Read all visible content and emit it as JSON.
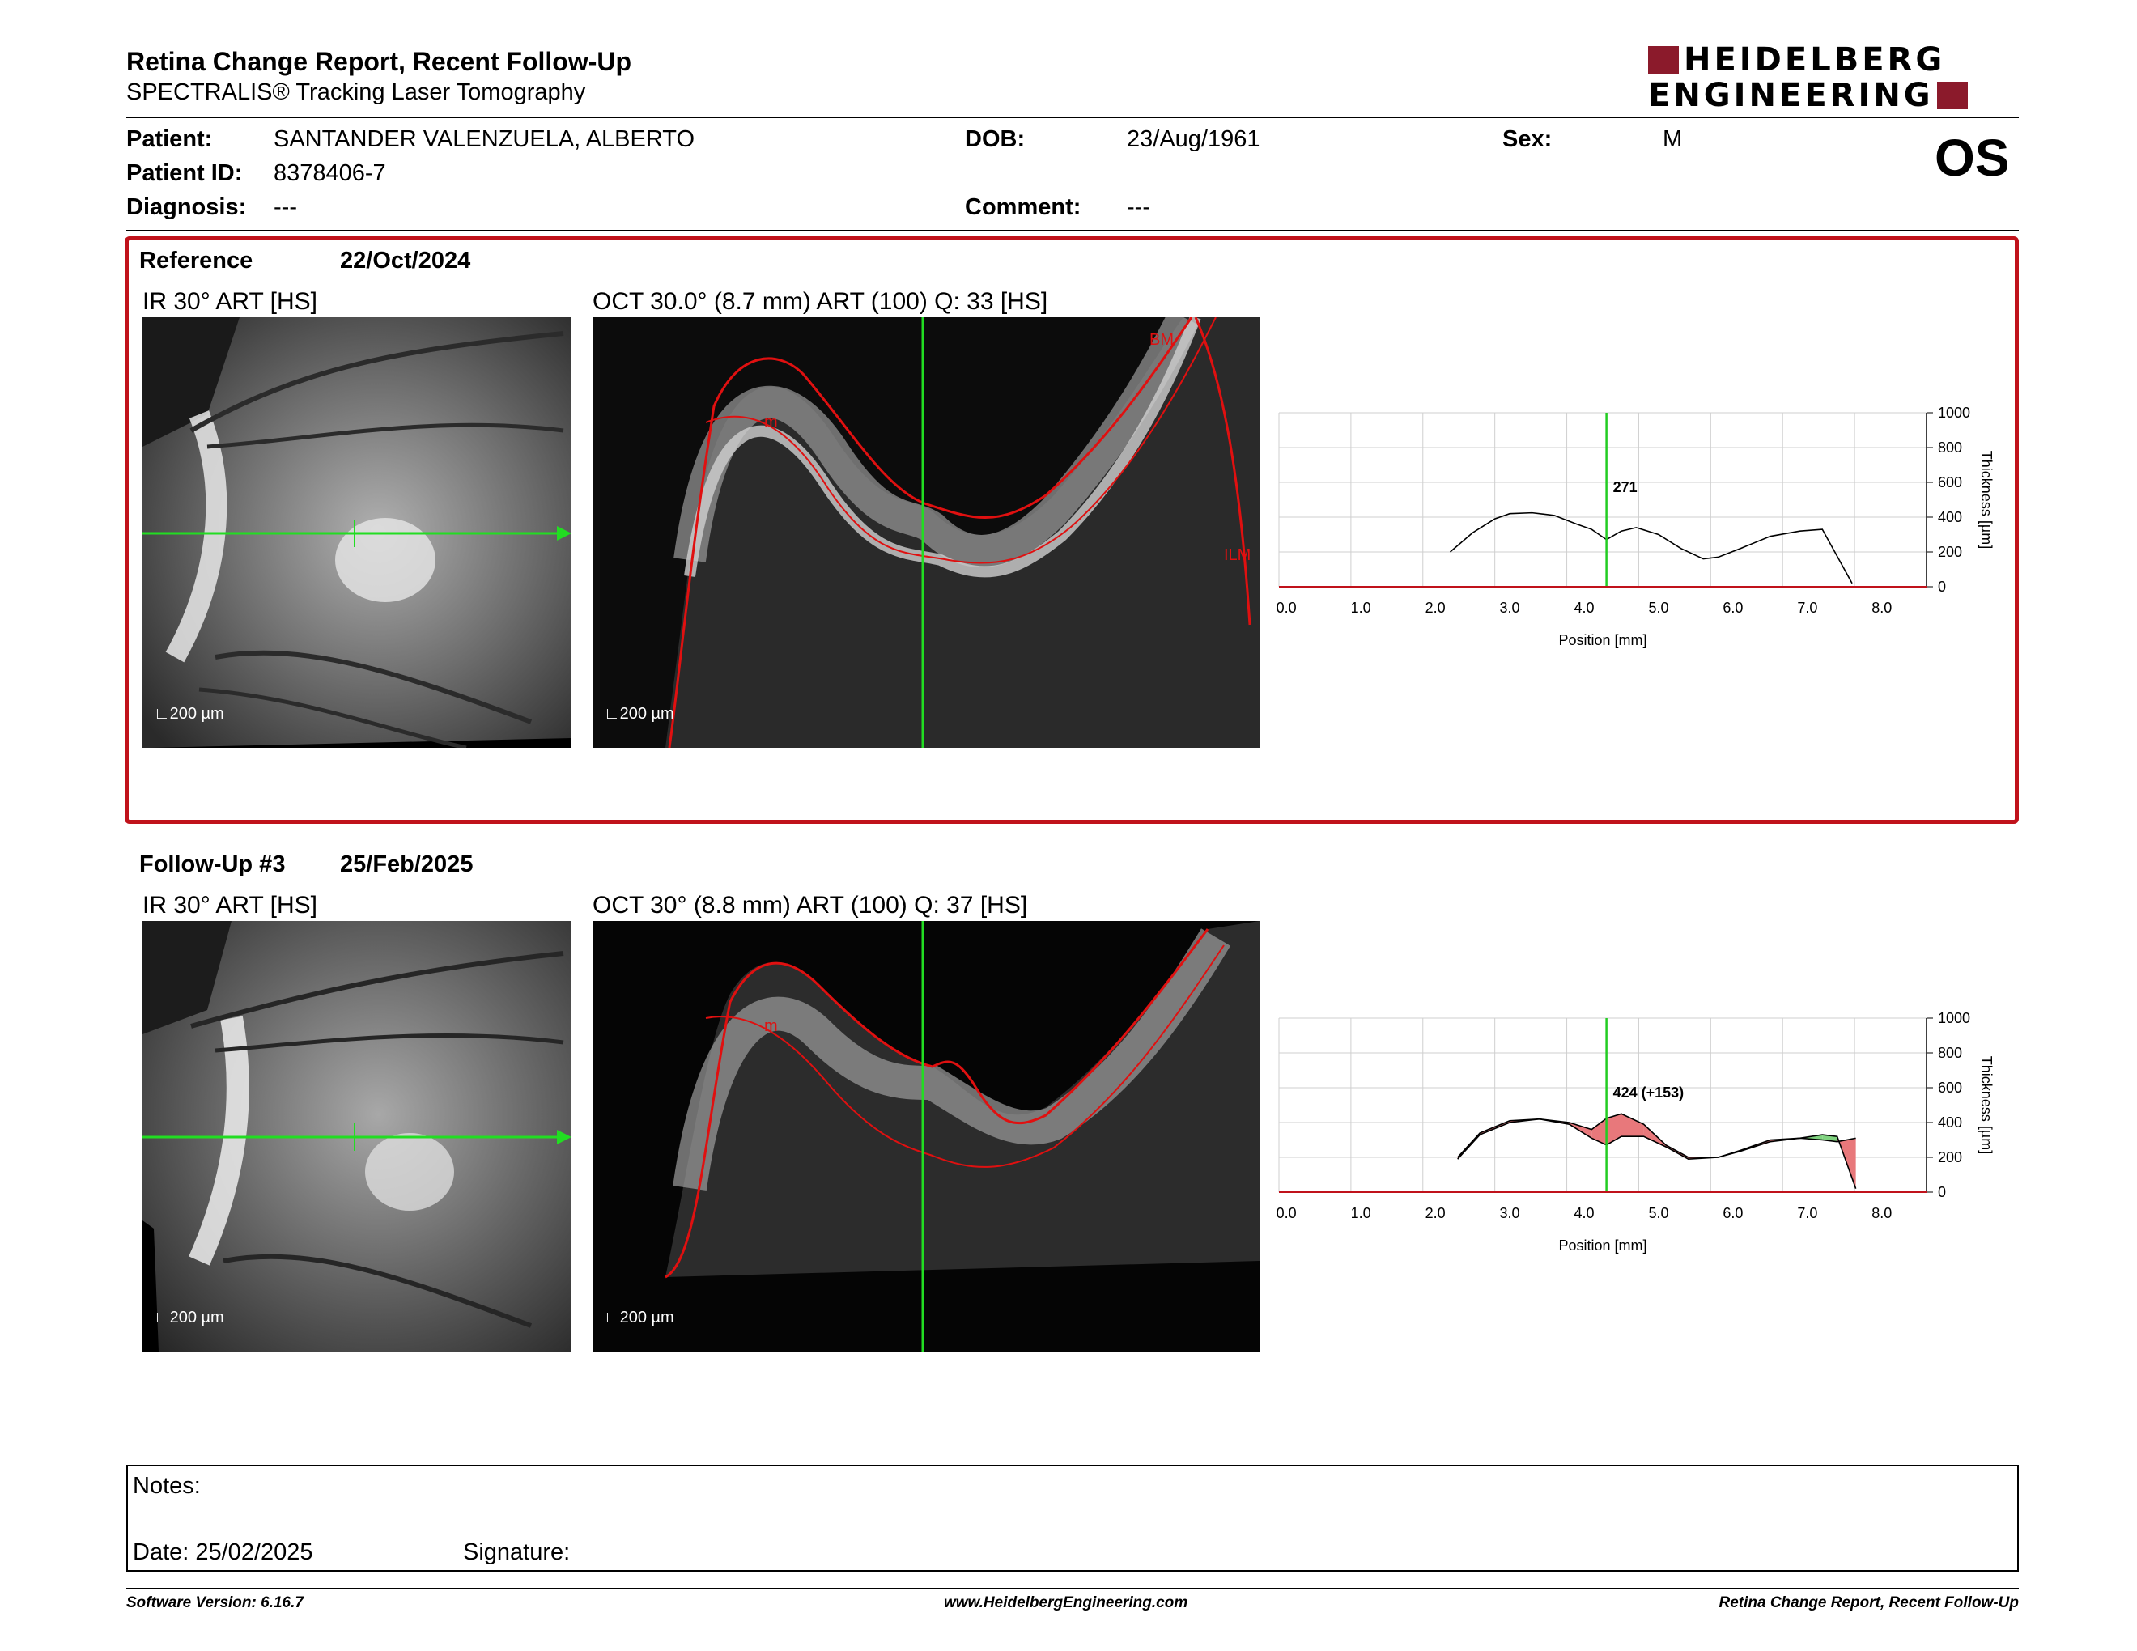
{
  "report": {
    "title": "Retina Change Report, Recent Follow-Up",
    "subtitle": "SPECTRALIS® Tracking Laser Tomography",
    "logo_line1": "HEIDELBERG",
    "logo_line2": "ENGINEERING",
    "brand_color": "#8b1a2b"
  },
  "patient": {
    "patient_label": "Patient:",
    "patient_name": "SANTANDER VALENZUELA, ALBERTO",
    "id_label": "Patient ID:",
    "patient_id": "8378406-7",
    "diagnosis_label": "Diagnosis:",
    "diagnosis": "---",
    "dob_label": "DOB:",
    "dob": "23/Aug/1961",
    "comment_label": "Comment:",
    "comment": "---",
    "sex_label": "Sex:",
    "sex": "M",
    "eye": "OS"
  },
  "reference": {
    "label": "Reference",
    "date": "22/Oct/2024",
    "ir_label": "IR 30° ART [HS]",
    "oct_label": "OCT 30.0° (8.7 mm) ART (100) Q: 33 [HS]",
    "ir_scale": "200 µm",
    "oct_scale": "200 µm",
    "layer_labels": [
      "BM",
      "ILM",
      "m"
    ],
    "box_color": "#c0121b"
  },
  "followup": {
    "label": "Follow-Up #3",
    "date": "25/Feb/2025",
    "ir_label": "IR 30° ART [HS]",
    "oct_label": "OCT 30° (8.8 mm) ART (100) Q: 37 [HS]",
    "ir_scale": "200 µm",
    "oct_scale": "200 µm",
    "layer_labels": [
      "m"
    ]
  },
  "chart_data": [
    {
      "type": "line",
      "name": "reference-thickness",
      "xlabel": "Position [mm]",
      "ylabel": "Thickness [µm]",
      "xlim": [
        -0.1,
        8.6
      ],
      "ylim": [
        0,
        1000
      ],
      "xticks": [
        "0.0",
        "1.0",
        "2.0",
        "3.0",
        "4.0",
        "5.0",
        "6.0",
        "7.0",
        "8.0"
      ],
      "yticks": [
        "0",
        "200",
        "400",
        "600",
        "800",
        "1000"
      ],
      "grid": true,
      "cursor_x": 4.3,
      "cursor_label": "271",
      "series": [
        {
          "x": [
            2.2,
            2.5,
            2.8,
            3.0,
            3.3,
            3.6,
            3.9,
            4.1,
            4.3,
            4.5,
            4.7,
            5.0,
            5.3,
            5.6,
            5.8,
            6.1,
            6.5,
            6.9,
            7.2,
            7.6
          ],
          "y": [
            200,
            310,
            390,
            420,
            425,
            410,
            360,
            330,
            271,
            320,
            340,
            300,
            220,
            160,
            170,
            220,
            290,
            320,
            330,
            20
          ]
        }
      ]
    },
    {
      "type": "line",
      "name": "followup-thickness",
      "xlabel": "Position [mm]",
      "ylabel": "Thickness [µm]",
      "xlim": [
        -0.1,
        8.6
      ],
      "ylim": [
        0,
        1000
      ],
      "xticks": [
        "0.0",
        "1.0",
        "2.0",
        "3.0",
        "4.0",
        "5.0",
        "6.0",
        "7.0",
        "8.0"
      ],
      "yticks": [
        "0",
        "200",
        "400",
        "600",
        "800",
        "1000"
      ],
      "grid": true,
      "cursor_x": 4.3,
      "cursor_label": "424 (+153)",
      "series": [
        {
          "name": "Follow-Up",
          "x": [
            2.3,
            2.6,
            3.0,
            3.4,
            3.8,
            4.1,
            4.3,
            4.5,
            4.8,
            5.1,
            5.4,
            5.8,
            6.1,
            6.5,
            6.9,
            7.2,
            7.4,
            7.65
          ],
          "y": [
            200,
            340,
            410,
            420,
            400,
            360,
            424,
            450,
            390,
            270,
            200,
            200,
            240,
            300,
            310,
            300,
            290,
            310
          ]
        },
        {
          "name": "Reference",
          "x": [
            2.3,
            2.6,
            3.0,
            3.4,
            3.8,
            4.1,
            4.3,
            4.5,
            4.8,
            5.1,
            5.4,
            5.8,
            6.1,
            6.5,
            6.9,
            7.2,
            7.4,
            7.65
          ],
          "y": [
            190,
            330,
            400,
            420,
            390,
            310,
            271,
            320,
            320,
            260,
            190,
            200,
            235,
            290,
            310,
            330,
            320,
            20
          ]
        }
      ],
      "increase_color": "#e8787b",
      "decrease_color": "#7fd27f"
    }
  ],
  "notes": {
    "notes_label": "Notes:",
    "date_label": "Date: 25/02/2025",
    "signature_label": "Signature:"
  },
  "footer": {
    "software": "Software Version: 6.16.7",
    "website": "www.HeidelbergEngineering.com",
    "report_name": "Retina Change Report, Recent Follow-Up"
  }
}
